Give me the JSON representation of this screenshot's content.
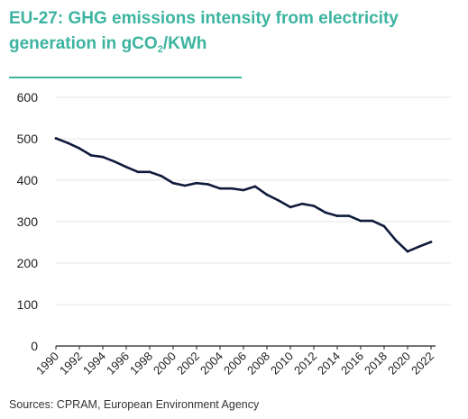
{
  "title": {
    "prefix": "EU-27: GHG emissions intensity from electricity generation in gCO",
    "subscript": "2",
    "suffix": "/KWh"
  },
  "source": "Sources: CPRAM, European Environment Agency",
  "colors": {
    "title": "#3cb4a0",
    "line": "#0f1a3c",
    "grid": "#e6e6e6",
    "axis": "#222222"
  },
  "chart_data": {
    "type": "line",
    "title": "EU-27: GHG emissions intensity from electricity generation in gCO2/KWh",
    "xlabel": "",
    "ylabel": "",
    "ylim": [
      0,
      600
    ],
    "yticks": [
      "0",
      "100",
      "200",
      "300",
      "400",
      "500",
      "600"
    ],
    "xticks": [
      "1990",
      "1992",
      "1994",
      "1996",
      "1998",
      "2000",
      "2002",
      "2004",
      "2006",
      "2008",
      "2010",
      "2012",
      "2014",
      "2016",
      "2018",
      "2020",
      "2022"
    ],
    "grid": true,
    "x": [
      1990,
      1991,
      1992,
      1993,
      1994,
      1995,
      1996,
      1997,
      1998,
      1999,
      2000,
      2001,
      2002,
      2003,
      2004,
      2005,
      2006,
      2007,
      2008,
      2009,
      2010,
      2011,
      2012,
      2013,
      2014,
      2015,
      2016,
      2017,
      2018,
      2019,
      2020,
      2021,
      2022
    ],
    "series": [
      {
        "values": [
          501,
          490,
          477,
          460,
          456,
          445,
          432,
          420,
          420,
          410,
          393,
          387,
          393,
          390,
          380,
          380,
          376,
          385,
          365,
          351,
          335,
          343,
          338,
          322,
          314,
          314,
          302,
          302,
          289,
          255,
          228,
          240,
          251
        ]
      }
    ]
  }
}
